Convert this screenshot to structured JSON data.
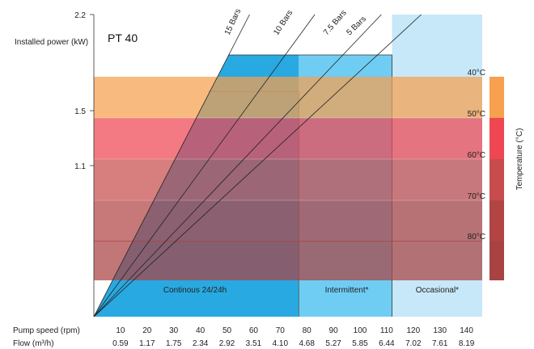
{
  "chart_data": {
    "type": "area",
    "title": "PT 40",
    "ylabel": "Installed power (kW)",
    "yticks": [
      "2.2",
      "1.5",
      "1.1"
    ],
    "x_rows": [
      {
        "label": "Pump speed (rpm)",
        "values": [
          "10",
          "20",
          "30",
          "40",
          "50",
          "60",
          "70",
          "80",
          "90",
          "100",
          "110",
          "120",
          "130",
          "140"
        ]
      },
      {
        "label": "Flow (m³/h)",
        "values": [
          "0.59",
          "1.17",
          "1.75",
          "2.34",
          "2.92",
          "3.51",
          "4.10",
          "4.68",
          "5.27",
          "5.85",
          "6.44",
          "7.02",
          "7.61",
          "8.19"
        ]
      }
    ],
    "regions": [
      {
        "label": "Continous 24/24h",
        "rpm_from": 0,
        "rpm_to": 77,
        "color": "#29a9e1"
      },
      {
        "label": "Intermittent*",
        "rpm_from": 77,
        "rpm_to": 112,
        "color": "#6fcdf4"
      },
      {
        "label": "Occasional*",
        "rpm_from": 112,
        "rpm_to": 146,
        "color": "#c7e8f8"
      }
    ],
    "pressure_lines": [
      {
        "label": "15 Bars"
      },
      {
        "label": "10 Bars"
      },
      {
        "label": "7.5 Bars"
      },
      {
        "label": "5 Bars"
      }
    ],
    "temperature_bands": [
      {
        "label": "40°C",
        "color": "#f7a04d"
      },
      {
        "label": "50°C",
        "color": "#ee4652"
      },
      {
        "label": "60°C",
        "color": "#c84c4c"
      },
      {
        "label": "70°C",
        "color": "#b24444"
      },
      {
        "label": "80°C",
        "color": "#a94242"
      }
    ],
    "temperature_axis_label": "Temperature (°C)"
  }
}
